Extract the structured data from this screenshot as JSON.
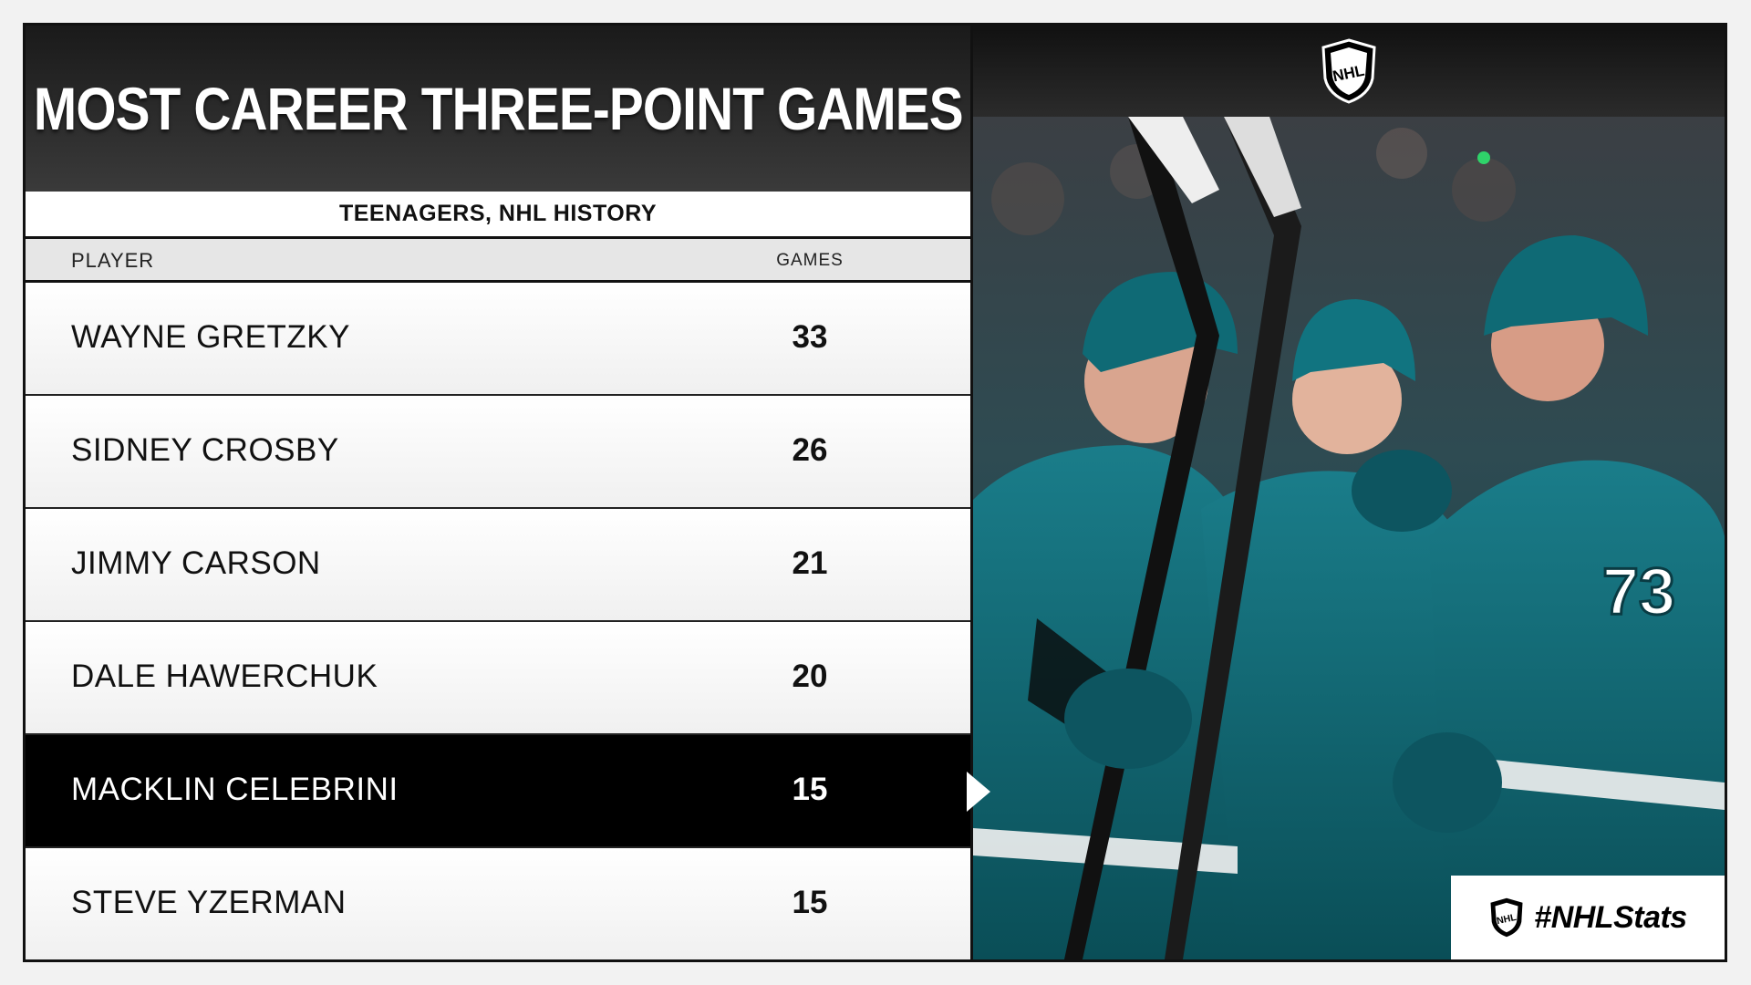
{
  "title": "MOST CAREER THREE-POINT GAMES",
  "subtitle": "TEENAGERS, NHL HISTORY",
  "columns": {
    "player": "PLAYER",
    "games": "GAMES"
  },
  "rows": [
    {
      "player": "WAYNE GRETZKY",
      "games": "33"
    },
    {
      "player": "SIDNEY CROSBY",
      "games": "26"
    },
    {
      "player": "JIMMY CARSON",
      "games": "21"
    },
    {
      "player": "DALE HAWERCHUK",
      "games": "20"
    },
    {
      "player": "MACKLIN CELEBRINI",
      "games": "15"
    },
    {
      "player": "STEVE YZERMAN",
      "games": "15"
    }
  ],
  "highlight_row": "MACKLIN CELEBRINI",
  "hashtag": "#NHLStats",
  "logo_text": "NHL",
  "jersey_number": "73",
  "colors": {
    "teal": "#0e5b66",
    "black": "#000000",
    "white": "#ffffff"
  },
  "icons": {
    "logo": "nhl-shield-icon",
    "photo": "sharks-players-photo"
  }
}
